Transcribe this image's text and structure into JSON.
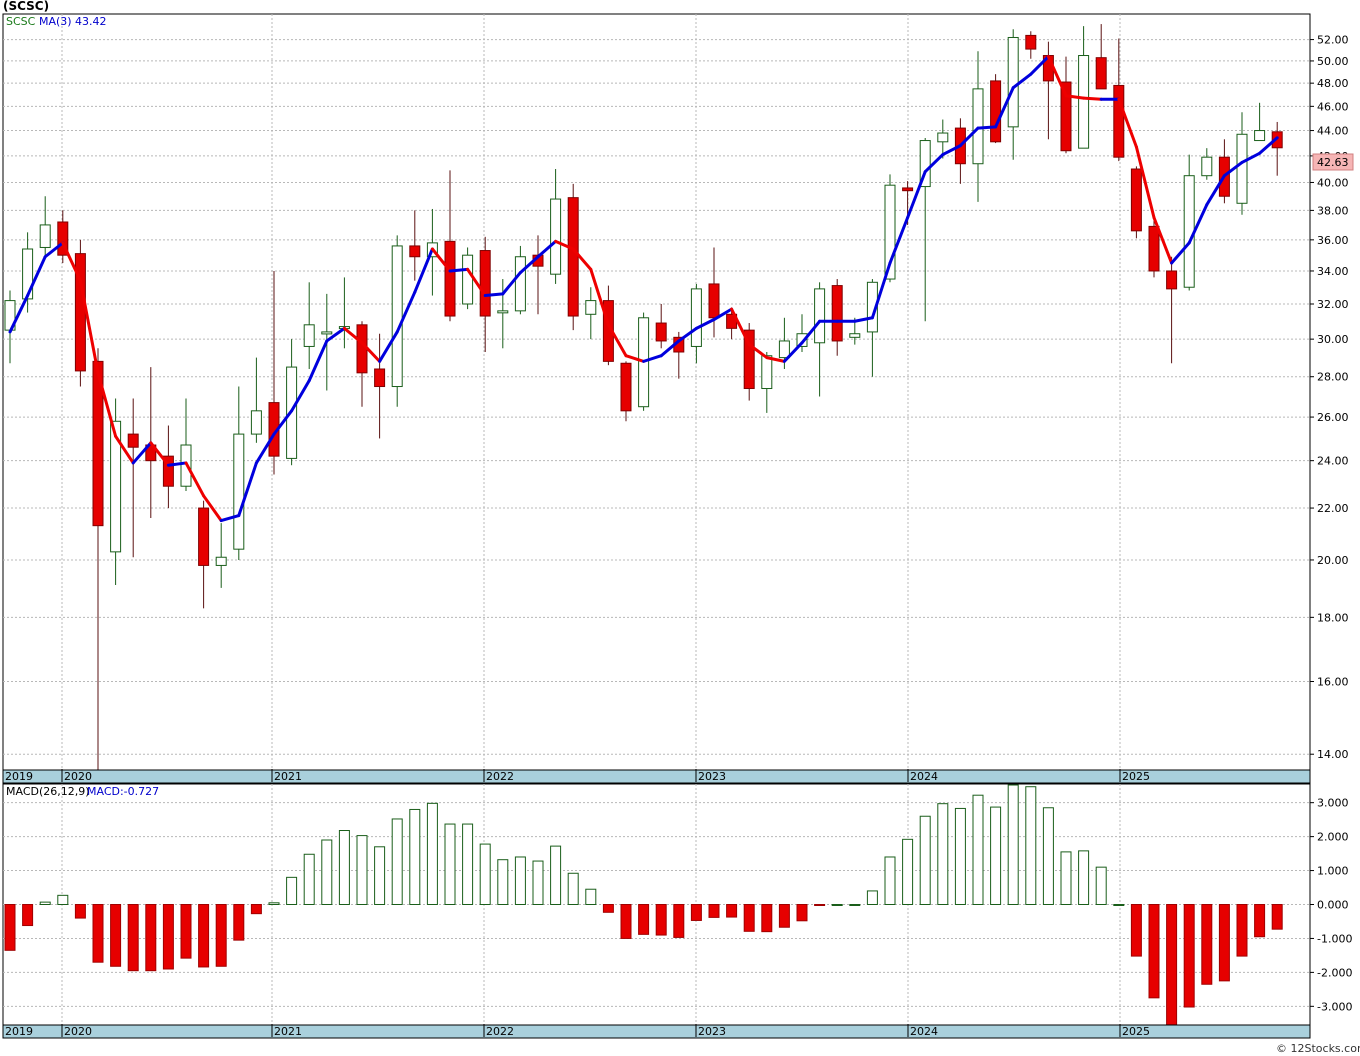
{
  "header": {
    "title": "(SCSC)"
  },
  "price_panel": {
    "legend_symbol": "SCSC",
    "legend_ma": "MA(3)",
    "legend_ma_value": "43.42",
    "last_price_label": "42.63"
  },
  "macd_panel": {
    "legend_macd": "MACD(26,12,9)",
    "legend_value": "MACD:-0.727"
  },
  "footer": {
    "credit": "© 12Stocks.com"
  },
  "colors": {
    "up": "#1a5e1a",
    "down": "#e60000",
    "wick": "#5a1010",
    "ma_up": "#0000dd",
    "ma_down": "#ee0000",
    "axis_band": "#a9d0dc",
    "grid": "#b8b8b8"
  },
  "chart_data": [
    {
      "type": "candlestick",
      "title": "",
      "ylim": [
        13.6,
        54.5
      ],
      "y_scale": "log",
      "y_ticks": [
        "14.00",
        "16.00",
        "18.00",
        "20.00",
        "22.00",
        "24.00",
        "26.00",
        "28.00",
        "30.00",
        "32.00",
        "34.00",
        "36.00",
        "38.00",
        "40.00",
        "42.00",
        "44.00",
        "46.00",
        "48.00",
        "50.00",
        "52.00"
      ],
      "x_year_labels": [
        "2019",
        "2020",
        "2021",
        "2022",
        "2023",
        "2024",
        "2025"
      ],
      "candles": [
        {
          "o": 30.5,
          "h": 32.8,
          "l": 28.7,
          "c": 32.2
        },
        {
          "o": 32.3,
          "h": 36.5,
          "l": 31.5,
          "c": 35.4
        },
        {
          "o": 35.5,
          "h": 39.0,
          "l": 34.8,
          "c": 37.0
        },
        {
          "o": 37.2,
          "h": 38.0,
          "l": 34.5,
          "c": 35.0
        },
        {
          "o": 35.1,
          "h": 36.0,
          "l": 27.5,
          "c": 28.3
        },
        {
          "o": 28.8,
          "h": 29.5,
          "l": 13.6,
          "c": 21.3
        },
        {
          "o": 20.3,
          "h": 26.9,
          "l": 19.1,
          "c": 25.8
        },
        {
          "o": 25.2,
          "h": 26.9,
          "l": 20.1,
          "c": 24.6
        },
        {
          "o": 24.7,
          "h": 28.5,
          "l": 21.6,
          "c": 24.0
        },
        {
          "o": 24.2,
          "h": 25.6,
          "l": 22.0,
          "c": 22.9
        },
        {
          "o": 22.9,
          "h": 26.9,
          "l": 22.7,
          "c": 24.7
        },
        {
          "o": 22.0,
          "h": 22.3,
          "l": 18.3,
          "c": 19.8
        },
        {
          "o": 19.8,
          "h": 21.4,
          "l": 19.0,
          "c": 20.1
        },
        {
          "o": 20.4,
          "h": 27.5,
          "l": 20.0,
          "c": 25.2
        },
        {
          "o": 25.2,
          "h": 29.0,
          "l": 24.8,
          "c": 26.3
        },
        {
          "o": 26.7,
          "h": 34.0,
          "l": 23.4,
          "c": 24.2
        },
        {
          "o": 24.1,
          "h": 30.0,
          "l": 23.8,
          "c": 28.5
        },
        {
          "o": 29.6,
          "h": 33.3,
          "l": 28.4,
          "c": 30.8
        },
        {
          "o": 30.4,
          "h": 32.6,
          "l": 27.3,
          "c": 30.4
        },
        {
          "o": 30.6,
          "h": 33.6,
          "l": 29.5,
          "c": 30.7
        },
        {
          "o": 30.8,
          "h": 31.0,
          "l": 26.5,
          "c": 28.2
        },
        {
          "o": 28.4,
          "h": 30.3,
          "l": 25.0,
          "c": 27.5
        },
        {
          "o": 27.5,
          "h": 36.3,
          "l": 26.5,
          "c": 35.6
        },
        {
          "o": 35.6,
          "h": 38.0,
          "l": 33.4,
          "c": 34.9
        },
        {
          "o": 34.9,
          "h": 38.1,
          "l": 32.5,
          "c": 35.8
        },
        {
          "o": 35.9,
          "h": 40.9,
          "l": 31.0,
          "c": 31.3
        },
        {
          "o": 32.0,
          "h": 35.5,
          "l": 31.7,
          "c": 35.0
        },
        {
          "o": 35.3,
          "h": 36.2,
          "l": 29.3,
          "c": 31.3
        },
        {
          "o": 31.5,
          "h": 33.5,
          "l": 29.5,
          "c": 31.6
        },
        {
          "o": 31.6,
          "h": 35.6,
          "l": 31.4,
          "c": 34.9
        },
        {
          "o": 35.0,
          "h": 36.3,
          "l": 31.4,
          "c": 34.3
        },
        {
          "o": 33.8,
          "h": 41.0,
          "l": 33.2,
          "c": 38.8
        },
        {
          "o": 38.9,
          "h": 39.9,
          "l": 30.5,
          "c": 31.3
        },
        {
          "o": 31.4,
          "h": 33.0,
          "l": 30.0,
          "c": 32.2
        },
        {
          "o": 32.2,
          "h": 33.1,
          "l": 28.6,
          "c": 28.8
        },
        {
          "o": 28.7,
          "h": 28.8,
          "l": 25.8,
          "c": 26.3
        },
        {
          "o": 26.5,
          "h": 31.5,
          "l": 26.3,
          "c": 31.2
        },
        {
          "o": 30.9,
          "h": 32.0,
          "l": 29.5,
          "c": 29.9
        },
        {
          "o": 30.1,
          "h": 30.4,
          "l": 27.9,
          "c": 29.3
        },
        {
          "o": 29.6,
          "h": 33.2,
          "l": 28.7,
          "c": 32.9
        },
        {
          "o": 33.2,
          "h": 35.5,
          "l": 30.1,
          "c": 31.2
        },
        {
          "o": 31.4,
          "h": 31.8,
          "l": 30.0,
          "c": 30.6
        },
        {
          "o": 30.5,
          "h": 30.9,
          "l": 26.8,
          "c": 27.4
        },
        {
          "o": 27.4,
          "h": 29.3,
          "l": 26.2,
          "c": 29.1
        },
        {
          "o": 29.0,
          "h": 31.2,
          "l": 28.4,
          "c": 29.9
        },
        {
          "o": 29.6,
          "h": 31.4,
          "l": 29.3,
          "c": 30.3
        },
        {
          "o": 29.8,
          "h": 33.3,
          "l": 27.0,
          "c": 32.9
        },
        {
          "o": 33.1,
          "h": 33.5,
          "l": 29.1,
          "c": 29.9
        },
        {
          "o": 30.1,
          "h": 31.2,
          "l": 29.7,
          "c": 30.3
        },
        {
          "o": 30.4,
          "h": 33.5,
          "l": 28.0,
          "c": 33.3
        },
        {
          "o": 33.5,
          "h": 40.6,
          "l": 33.3,
          "c": 39.8
        },
        {
          "o": 39.6,
          "h": 40.1,
          "l": 37.0,
          "c": 39.4
        },
        {
          "o": 39.7,
          "h": 43.4,
          "l": 31.0,
          "c": 43.2
        },
        {
          "o": 43.1,
          "h": 44.9,
          "l": 41.8,
          "c": 43.8
        },
        {
          "o": 44.2,
          "h": 45.0,
          "l": 39.9,
          "c": 41.4
        },
        {
          "o": 41.4,
          "h": 50.9,
          "l": 38.6,
          "c": 47.5
        },
        {
          "o": 48.2,
          "h": 48.8,
          "l": 43.0,
          "c": 43.1
        },
        {
          "o": 44.3,
          "h": 53.0,
          "l": 41.7,
          "c": 52.2
        },
        {
          "o": 52.4,
          "h": 52.8,
          "l": 50.2,
          "c": 51.1
        },
        {
          "o": 50.5,
          "h": 51.8,
          "l": 43.3,
          "c": 48.2
        },
        {
          "o": 48.1,
          "h": 50.4,
          "l": 42.2,
          "c": 42.4
        },
        {
          "o": 42.6,
          "h": 53.3,
          "l": 42.6,
          "c": 50.5
        },
        {
          "o": 50.3,
          "h": 53.5,
          "l": 47.5,
          "c": 47.5
        },
        {
          "o": 47.8,
          "h": 52.1,
          "l": 41.6,
          "c": 41.9
        },
        {
          "o": 41.0,
          "h": 41.2,
          "l": 36.1,
          "c": 36.6
        },
        {
          "o": 36.9,
          "h": 37.5,
          "l": 33.6,
          "c": 34.0
        },
        {
          "o": 34.0,
          "h": 34.9,
          "l": 28.7,
          "c": 32.9
        },
        {
          "o": 33.0,
          "h": 42.1,
          "l": 32.8,
          "c": 40.5
        },
        {
          "o": 40.5,
          "h": 42.6,
          "l": 40.2,
          "c": 41.9
        },
        {
          "o": 41.9,
          "h": 43.3,
          "l": 38.5,
          "c": 39.0
        },
        {
          "o": 38.5,
          "h": 45.5,
          "l": 37.7,
          "c": 43.7
        },
        {
          "o": 43.2,
          "h": 46.3,
          "l": 43.2,
          "c": 44.0
        },
        {
          "o": 43.9,
          "h": 44.7,
          "l": 40.5,
          "c": 42.63
        }
      ],
      "ma3": [
        30.4,
        32.5,
        34.9,
        35.8,
        33.4,
        28.2,
        25.1,
        23.9,
        24.8,
        23.8,
        23.9,
        22.5,
        21.5,
        21.7,
        23.9,
        25.2,
        26.3,
        27.8,
        29.9,
        30.6,
        29.8,
        28.8,
        30.4,
        32.7,
        35.4,
        34.0,
        34.1,
        32.5,
        32.6,
        33.9,
        34.9,
        35.9,
        35.4,
        34.1,
        30.8,
        29.1,
        28.8,
        29.1,
        29.9,
        30.6,
        31.1,
        31.7,
        29.7,
        29.0,
        28.8,
        29.8,
        31.0,
        31.0,
        31.0,
        31.2,
        34.5,
        37.5,
        40.8,
        42.1,
        42.8,
        44.2,
        44.3,
        47.6,
        48.8,
        50.4,
        46.9,
        46.7,
        46.6,
        46.6,
        42.7,
        37.5,
        34.5,
        35.8,
        38.4,
        40.5,
        41.5,
        42.2,
        43.42
      ],
      "xlabel": "",
      "ylabel": ""
    },
    {
      "type": "bar",
      "title": "",
      "ylim": [
        -3.55,
        3.55
      ],
      "y_ticks": [
        "-3.000",
        "-2.000",
        "-1.000",
        "0.000",
        "1.000",
        "2.000",
        "3.000"
      ],
      "values": [
        -1.35,
        -0.62,
        0.07,
        0.27,
        -0.4,
        -1.7,
        -1.82,
        -1.95,
        -1.95,
        -1.9,
        -1.58,
        -1.84,
        -1.82,
        -1.05,
        -0.27,
        0.05,
        0.8,
        1.48,
        1.9,
        2.18,
        2.03,
        1.7,
        2.52,
        2.8,
        2.98,
        2.37,
        2.37,
        1.78,
        1.32,
        1.4,
        1.28,
        1.72,
        0.92,
        0.45,
        -0.23,
        -1.0,
        -0.88,
        -0.9,
        -0.97,
        -0.47,
        -0.38,
        -0.37,
        -0.79,
        -0.8,
        -0.67,
        -0.48,
        -0.02,
        0.0,
        0.0,
        0.4,
        1.4,
        1.92,
        2.6,
        2.97,
        2.83,
        3.22,
        2.87,
        3.52,
        3.47,
        2.85,
        1.55,
        1.58,
        1.1,
        0.0,
        -1.52,
        -2.75,
        -3.55,
        -3.02,
        -2.35,
        -2.25,
        -1.52,
        -0.95,
        -0.727
      ],
      "x_year_labels": [
        "2019",
        "2020",
        "2021",
        "2022",
        "2023",
        "2024",
        "2025"
      ],
      "xlabel": "",
      "ylabel": ""
    }
  ]
}
